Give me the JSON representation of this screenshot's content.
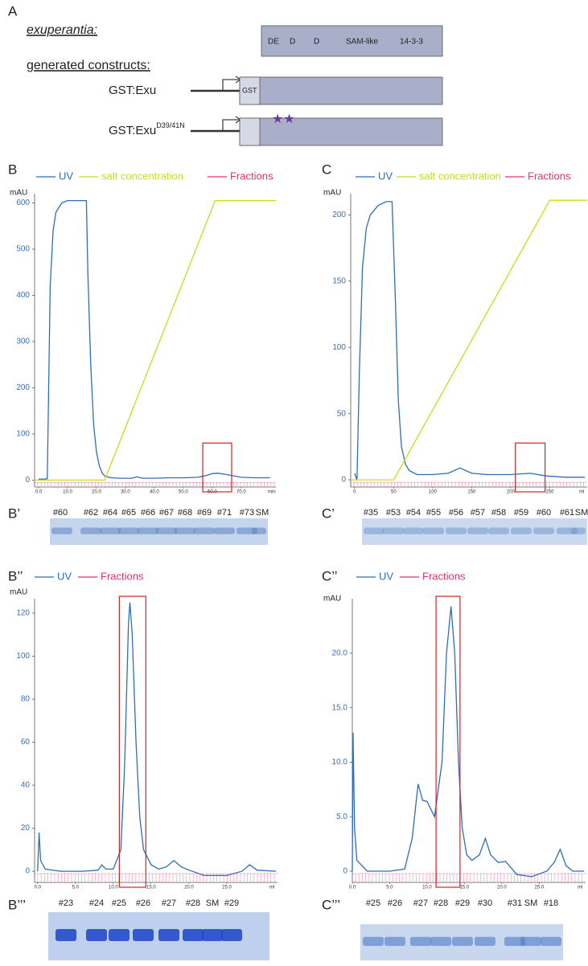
{
  "panel_a": {
    "label": "A",
    "gene": "exuperantia:",
    "domains": [
      "DE",
      "D",
      "D",
      "SAM-like",
      "14-3-3"
    ],
    "constructs_heading": "generated constructs:",
    "constructs": [
      {
        "name": "GST:Exu",
        "tag": "GST"
      },
      {
        "name": "GST:Exu",
        "superscript": "D39/41N"
      }
    ]
  },
  "chart_data": [
    {
      "type": "line",
      "panel": "B",
      "y_label": "mAU",
      "x_unit": "min",
      "xlim": [
        -1.4,
        82
      ],
      "ylim": [
        -15,
        620
      ],
      "yticks": [
        0,
        100,
        200,
        300,
        400,
        500,
        600
      ],
      "xticks": [
        {
          "value": 0,
          "label": "0.0"
        },
        {
          "value": 10,
          "label": "10.0"
        },
        {
          "value": 20,
          "label": "20.0"
        },
        {
          "value": 30,
          "label": "30.0"
        },
        {
          "value": 40,
          "label": "40.0"
        },
        {
          "value": 50,
          "label": "50.0"
        },
        {
          "value": 60,
          "label": "60.0"
        },
        {
          "value": 70,
          "label": "70.0"
        }
      ],
      "highlight": [
        56.7,
        66.7
      ],
      "series": [
        {
          "name": "UV",
          "color": "#2e6eb5",
          "x": [
            0,
            2,
            3,
            4,
            5,
            6,
            8,
            10,
            12,
            14,
            16.5,
            17,
            18,
            19,
            20,
            21,
            22,
            23,
            25,
            28,
            32,
            34,
            36,
            40,
            45,
            50,
            55,
            58,
            60,
            62,
            65,
            70,
            75,
            80
          ],
          "values": [
            2,
            2,
            3,
            420,
            540,
            580,
            600,
            605,
            605,
            605,
            605,
            450,
            250,
            120,
            60,
            30,
            15,
            8,
            5,
            4,
            4,
            7,
            4,
            4,
            5,
            5,
            6,
            10,
            14,
            15,
            12,
            6,
            5,
            5
          ]
        },
        {
          "name": "salt concentration",
          "color": "#c8dc1e",
          "x": [
            -1,
            22.8,
            61,
            82
          ],
          "values": [
            0,
            0,
            605,
            605
          ]
        },
        {
          "name": "Fractions",
          "color": "#e0306e"
        }
      ]
    },
    {
      "type": "line",
      "panel": "C",
      "y_label": "mAU",
      "x_unit": "ml",
      "xlim": [
        -5,
        298
      ],
      "ylim": [
        -5.4,
        216
      ],
      "yticks": [
        0,
        50,
        100,
        150,
        200
      ],
      "xticks": [
        0,
        50,
        100,
        150,
        200,
        250
      ],
      "highlight": [
        206,
        244
      ],
      "series": [
        {
          "name": "UV",
          "color": "#2e6eb5",
          "x": [
            0,
            3,
            6,
            10,
            15,
            20,
            30,
            40,
            48,
            52,
            56,
            60,
            65,
            70,
            80,
            100,
            120,
            135,
            150,
            170,
            200,
            225,
            245,
            270,
            295
          ],
          "values": [
            5,
            0,
            80,
            160,
            190,
            200,
            207,
            210,
            210,
            140,
            60,
            25,
            12,
            7,
            4,
            4,
            5,
            9,
            5,
            4,
            4,
            5,
            3,
            2,
            2
          ]
        },
        {
          "name": "salt concentration",
          "color": "#c8dc1e",
          "x": [
            -5,
            50,
            250,
            298
          ],
          "values": [
            0,
            0,
            211,
            211
          ]
        },
        {
          "name": "Fractions",
          "color": "#e0306e"
        }
      ]
    },
    {
      "type": "line",
      "panel": "B’’",
      "y_label": "mAU",
      "x_unit": "ml",
      "xlim": [
        -0.4,
        31.7
      ],
      "ylim": [
        -5.2,
        126.7
      ],
      "yticks": [
        0,
        20,
        40,
        60,
        80,
        100,
        120
      ],
      "xticks": [
        {
          "value": 0,
          "label": "0.0"
        },
        {
          "value": 5,
          "label": "5.0"
        },
        {
          "value": 10,
          "label": "10.0"
        },
        {
          "value": 15,
          "label": "15.0"
        },
        {
          "value": 20,
          "label": "20.0"
        },
        {
          "value": 25,
          "label": "25.0"
        }
      ],
      "highlight": [
        10.8,
        14.3
      ],
      "series": [
        {
          "name": "UV",
          "color": "#2e6eb5",
          "x": [
            0,
            0.2,
            0.4,
            1,
            3,
            6,
            8,
            8.5,
            9,
            10,
            11,
            11.5,
            12,
            12.2,
            12.5,
            13,
            13.5,
            14,
            15,
            16,
            17,
            18,
            19,
            20,
            22,
            25,
            27,
            28,
            29,
            31.5
          ],
          "values": [
            0,
            18,
            5,
            1,
            0,
            0,
            0.5,
            3,
            1,
            1,
            10,
            50,
            115,
            125,
            110,
            60,
            25,
            10,
            3,
            1,
            2,
            5,
            2,
            0.5,
            -2,
            -2,
            0,
            3,
            0.5,
            0
          ]
        },
        {
          "name": "Fractions",
          "color": "#e0306e"
        }
      ]
    },
    {
      "type": "line",
      "panel": "C’’",
      "y_label": "mAU",
      "x_unit": "ml",
      "xlim": [
        0,
        31.2
      ],
      "ylim": [
        -1.03,
        25
      ],
      "yticks": [
        0,
        {
          "value": 5,
          "label": "5.0"
        },
        {
          "value": 10,
          "label": "10.0"
        },
        {
          "value": 15,
          "label": "15.0"
        },
        {
          "value": 20,
          "label": "20.0"
        }
      ],
      "xticks": [
        {
          "value": 0,
          "label": "0.0"
        },
        {
          "value": 5,
          "label": "5.0"
        },
        {
          "value": 10,
          "label": "10.0"
        },
        {
          "value": 15,
          "label": "15.0"
        },
        {
          "value": 20,
          "label": "20.0"
        },
        {
          "value": 25,
          "label": "25.0"
        }
      ],
      "highlight": [
        11.2,
        14.4
      ],
      "series": [
        {
          "name": "UV",
          "color": "#2e6eb5",
          "x": [
            0,
            0.1,
            0.3,
            0.6,
            2,
            5,
            7,
            8,
            8.8,
            9.4,
            10,
            11,
            12,
            12.6,
            13.2,
            13.7,
            14.2,
            14.7,
            15.3,
            16,
            17,
            17.8,
            18.5,
            19.5,
            20.5,
            21,
            22,
            24,
            26,
            27,
            27.8,
            28.6,
            29.5,
            31
          ],
          "values": [
            0,
            12.7,
            4,
            1,
            0,
            0,
            0.2,
            3,
            8,
            6.5,
            6.4,
            5,
            10,
            20,
            24.3,
            20,
            10,
            4,
            1.5,
            1,
            1.5,
            3,
            1.5,
            0.8,
            0.9,
            0.5,
            -0.3,
            -0.5,
            0,
            0.8,
            2,
            0.5,
            0,
            0
          ]
        },
        {
          "name": "Fractions",
          "color": "#e0306e"
        }
      ]
    }
  ],
  "gels": [
    {
      "panel": "B’",
      "lanes": [
        "#60",
        "#62",
        "#64",
        "#65",
        "#66",
        "#67",
        "#68",
        "#69",
        "#71",
        "#73",
        "SM"
      ]
    },
    {
      "panel": "C’",
      "lanes": [
        "#35",
        "#53",
        "#54",
        "#55",
        "#56",
        "#57",
        "#58",
        "#59",
        "#60",
        "#61",
        "SM"
      ]
    },
    {
      "panel": "B’’’",
      "lanes": [
        "#23",
        "#24",
        "#25",
        "#26",
        "#27",
        "#28",
        "SM",
        "#29"
      ]
    },
    {
      "panel": "C’’’",
      "lanes": [
        "#25",
        "#26",
        "#27",
        "#28",
        "#29",
        "#30",
        "#31",
        "SM",
        "#18"
      ]
    }
  ]
}
